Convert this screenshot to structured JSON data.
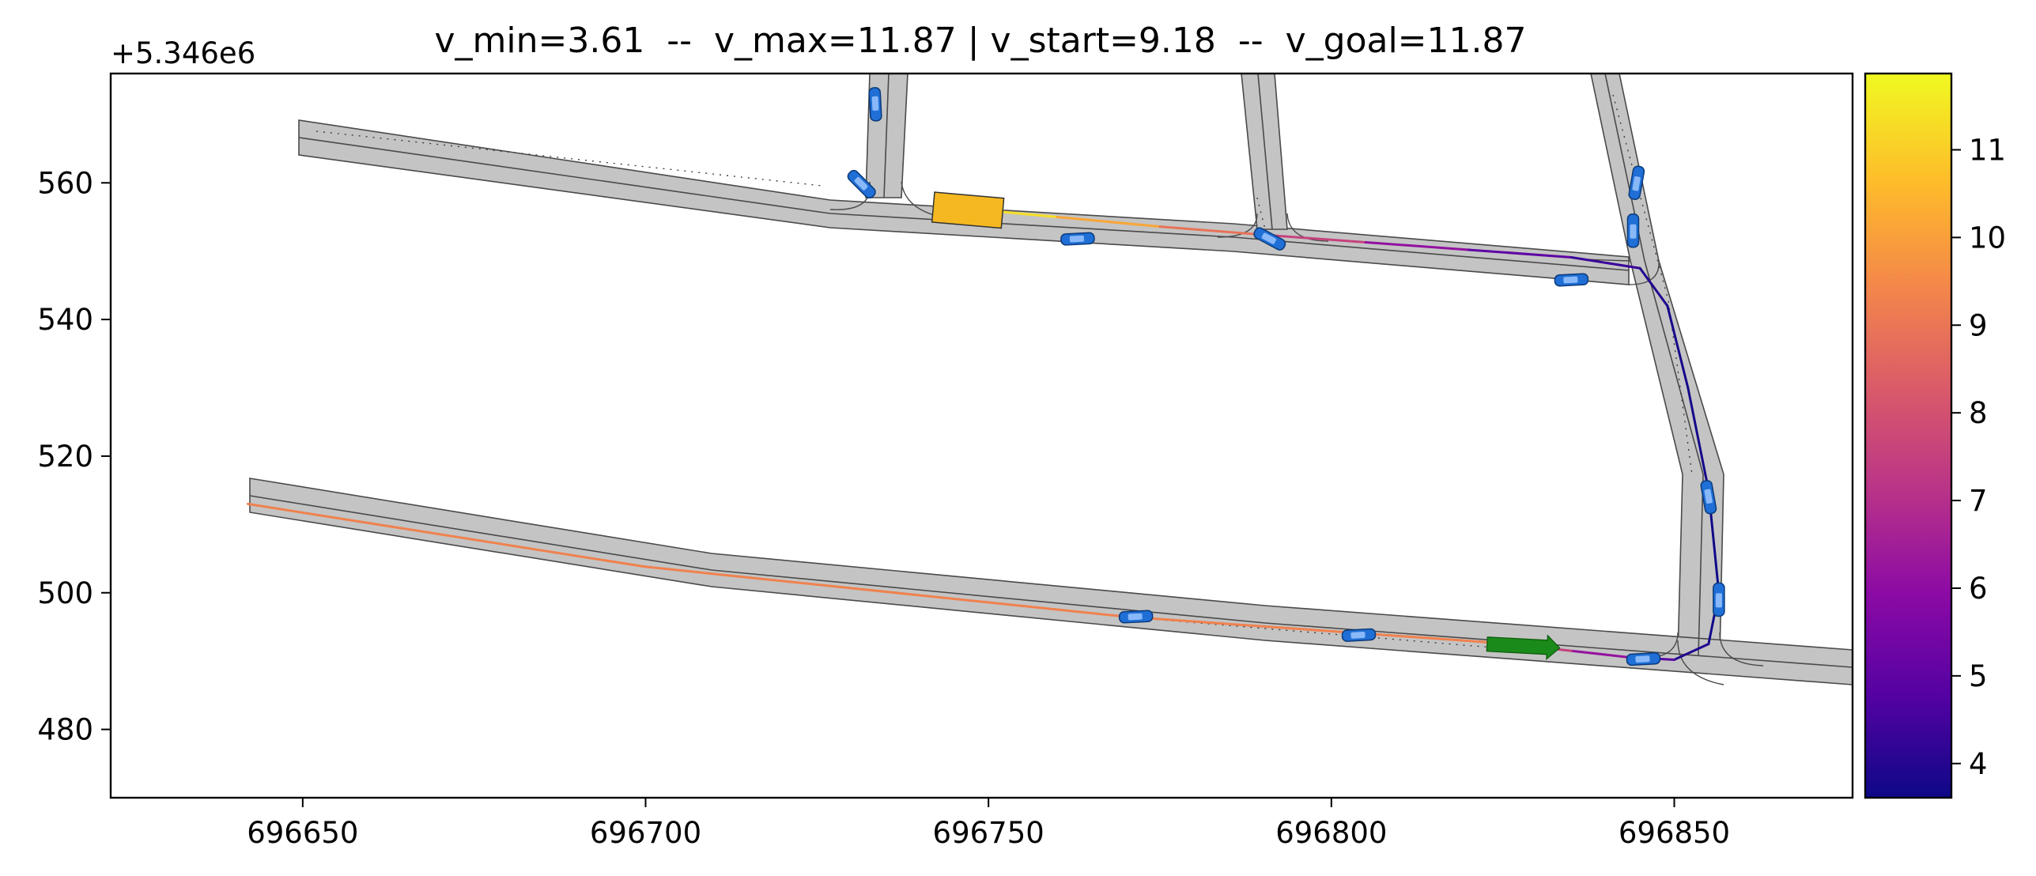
{
  "chart_data": {
    "type": "scatter",
    "title": "v_min=3.61  --  v_max=11.87 | v_start=9.18  --  v_goal=11.87",
    "xlabel": "",
    "ylabel": "",
    "y_offset_label": "+5.346e6",
    "xlim": [
      696622,
      696876
    ],
    "ylim": [
      470,
      576
    ],
    "x_ticks": [
      696650,
      696700,
      696750,
      696800,
      696850
    ],
    "x_tick_labels": [
      "696650",
      "696700",
      "696750",
      "696800",
      "696850"
    ],
    "y_ticks": [
      480,
      500,
      520,
      540,
      560
    ],
    "y_tick_labels": [
      "480",
      "500",
      "520",
      "540",
      "560"
    ],
    "colorbar": {
      "colormap": "plasma",
      "range": [
        3.61,
        11.87
      ],
      "ticks": [
        4,
        5,
        6,
        7,
        8,
        9,
        10,
        11
      ],
      "tick_labels": [
        "4",
        "5",
        "6",
        "7",
        "8",
        "9",
        "10",
        "11"
      ]
    },
    "trajectory": {
      "velocity_min": 3.61,
      "velocity_max": 11.87,
      "velocity_start": 9.18,
      "velocity_goal": 11.87,
      "points": [
        {
          "x": 696743,
          "y": 556.6,
          "v": 11.87
        },
        {
          "x": 696760,
          "y": 555.0,
          "v": 10.8
        },
        {
          "x": 696775,
          "y": 553.6,
          "v": 9.5
        },
        {
          "x": 696790,
          "y": 552.4,
          "v": 8.3
        },
        {
          "x": 696805,
          "y": 551.3,
          "v": 6.8
        },
        {
          "x": 696820,
          "y": 550.2,
          "v": 5.4
        },
        {
          "x": 696835,
          "y": 549.1,
          "v": 4.6
        },
        {
          "x": 696845,
          "y": 547.5,
          "v": 4.1
        },
        {
          "x": 696849,
          "y": 542.0,
          "v": 3.8
        },
        {
          "x": 696852,
          "y": 530.0,
          "v": 3.7
        },
        {
          "x": 696855,
          "y": 515.0,
          "v": 3.7
        },
        {
          "x": 696856.5,
          "y": 500.0,
          "v": 3.61
        },
        {
          "x": 696855,
          "y": 492.5,
          "v": 3.7
        },
        {
          "x": 696850,
          "y": 490.2,
          "v": 4.2
        },
        {
          "x": 696843,
          "y": 490.6,
          "v": 5.5
        },
        {
          "x": 696835,
          "y": 491.5,
          "v": 6.8
        },
        {
          "x": 696825,
          "y": 492.6,
          "v": 8.2
        }
      ],
      "lower_path": [
        {
          "x": 696642,
          "y": 513.0
        },
        {
          "x": 696700,
          "y": 503.8
        },
        {
          "x": 696770,
          "y": 496.5
        },
        {
          "x": 696825,
          "y": 492.6
        }
      ]
    },
    "ego_vehicle": {
      "x": 696747,
      "y": 556.0,
      "color": "#f5b820"
    },
    "goal_marker": {
      "x": 696828,
      "y": 492.2,
      "color": "#1a8a1a"
    },
    "obstacles": [
      {
        "x": 696733.5,
        "y": 571.5,
        "angle": -87
      },
      {
        "x": 696731.5,
        "y": 559.8,
        "angle": -45
      },
      {
        "x": 696763,
        "y": 551.8,
        "angle": 3
      },
      {
        "x": 696791,
        "y": 551.8,
        "angle": -28
      },
      {
        "x": 696835,
        "y": 545.8,
        "angle": 3
      },
      {
        "x": 696844.5,
        "y": 560.0,
        "angle": 80
      },
      {
        "x": 696844,
        "y": 553.0,
        "angle": 90
      },
      {
        "x": 696855,
        "y": 514.0,
        "angle": -80
      },
      {
        "x": 696856.5,
        "y": 499.0,
        "angle": 90
      },
      {
        "x": 696771.5,
        "y": 496.5,
        "angle": 3
      },
      {
        "x": 696804,
        "y": 493.8,
        "angle": 3
      },
      {
        "x": 696845.5,
        "y": 490.3,
        "angle": 3
      }
    ]
  }
}
